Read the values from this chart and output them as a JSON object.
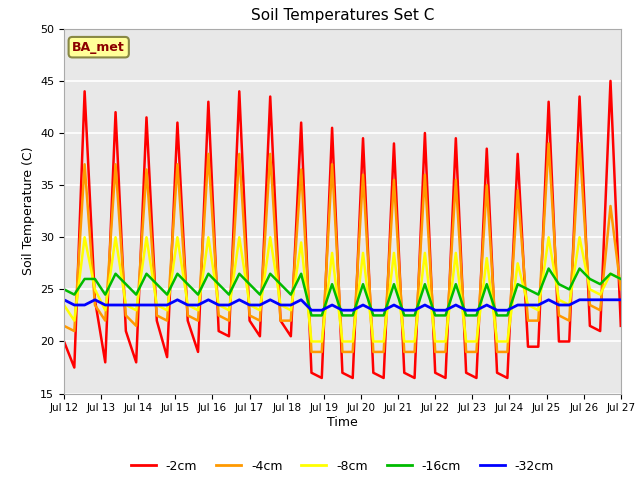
{
  "title": "Soil Temperatures Set C",
  "xlabel": "Time",
  "ylabel": "Soil Temperature (C)",
  "ylim": [
    15,
    50
  ],
  "yticks": [
    15,
    20,
    25,
    30,
    35,
    40,
    45,
    50
  ],
  "annotation": "BA_met",
  "bg_color": "#e8e8e8",
  "legend_labels": [
    "-2cm",
    "-4cm",
    "-8cm",
    "-16cm",
    "-32cm"
  ],
  "legend_colors": [
    "#ff0000",
    "#ff9900",
    "#ffff00",
    "#00bb00",
    "#0000ff"
  ],
  "x_tick_labels": [
    "Jul 12",
    "Jul 13",
    "Jul 14",
    "Jul 15",
    "Jul 16",
    "Jul 17",
    "Jul 18",
    "Jul 19",
    "Jul 20",
    "Jul 21",
    "Jul 22",
    "Jul 23",
    "Jul 24",
    "Jul 25",
    "Jul 26",
    "Jul 27"
  ],
  "series": {
    "neg2cm": [
      20.0,
      17.5,
      44.0,
      24.0,
      18.0,
      42.0,
      21.0,
      18.0,
      41.5,
      22.0,
      18.5,
      41.0,
      22.0,
      19.0,
      43.0,
      21.0,
      20.5,
      44.0,
      22.0,
      20.5,
      43.5,
      22.0,
      20.5,
      41.0,
      17.0,
      16.5,
      40.5,
      17.0,
      16.5,
      39.5,
      17.0,
      16.5,
      39.0,
      17.0,
      16.5,
      40.0,
      17.0,
      16.5,
      39.5,
      17.0,
      16.5,
      38.5,
      17.0,
      16.5,
      38.0,
      19.5,
      19.5,
      43.0,
      20.0,
      20.0,
      43.5,
      21.5,
      21.0,
      45.0,
      21.5
    ],
    "neg4cm": [
      21.5,
      21.0,
      37.0,
      23.5,
      22.0,
      37.0,
      22.5,
      21.5,
      36.5,
      22.5,
      22.0,
      37.0,
      22.5,
      22.0,
      38.0,
      22.5,
      22.0,
      38.0,
      22.5,
      22.0,
      38.0,
      22.0,
      22.0,
      36.5,
      19.0,
      19.0,
      37.0,
      19.0,
      19.0,
      36.0,
      19.0,
      19.0,
      35.5,
      19.0,
      19.0,
      36.0,
      19.0,
      19.0,
      35.5,
      19.0,
      19.0,
      35.0,
      19.0,
      19.0,
      34.5,
      22.0,
      22.0,
      39.0,
      22.5,
      22.0,
      39.0,
      23.5,
      23.0,
      33.0,
      25.0
    ],
    "neg8cm": [
      23.5,
      22.0,
      30.0,
      25.0,
      23.0,
      30.0,
      23.5,
      23.0,
      30.0,
      23.5,
      23.0,
      30.0,
      23.5,
      23.0,
      30.0,
      23.5,
      23.0,
      30.0,
      23.5,
      23.0,
      30.0,
      23.5,
      23.0,
      29.5,
      20.0,
      20.0,
      28.5,
      20.0,
      20.0,
      28.5,
      20.0,
      20.0,
      28.5,
      20.0,
      20.0,
      28.5,
      20.0,
      20.0,
      28.5,
      20.0,
      20.0,
      28.0,
      20.0,
      20.0,
      27.5,
      23.5,
      23.0,
      30.0,
      24.0,
      23.5,
      30.0,
      25.0,
      24.5,
      26.5,
      26.0
    ],
    "neg16cm": [
      25.0,
      24.5,
      26.0,
      26.0,
      24.5,
      26.5,
      25.5,
      24.5,
      26.5,
      25.5,
      24.5,
      26.5,
      25.5,
      24.5,
      26.5,
      25.5,
      24.5,
      26.5,
      25.5,
      24.5,
      26.5,
      25.5,
      24.5,
      26.5,
      22.5,
      22.5,
      25.5,
      22.5,
      22.5,
      25.5,
      22.5,
      22.5,
      25.5,
      22.5,
      22.5,
      25.5,
      22.5,
      22.5,
      25.5,
      22.5,
      22.5,
      25.5,
      22.5,
      22.5,
      25.5,
      25.0,
      24.5,
      27.0,
      25.5,
      25.0,
      27.0,
      26.0,
      25.5,
      26.5,
      26.0
    ],
    "neg32cm": [
      24.0,
      23.5,
      23.5,
      24.0,
      23.5,
      23.5,
      23.5,
      23.5,
      23.5,
      23.5,
      23.5,
      24.0,
      23.5,
      23.5,
      24.0,
      23.5,
      23.5,
      24.0,
      23.5,
      23.5,
      24.0,
      23.5,
      23.5,
      24.0,
      23.0,
      23.0,
      23.5,
      23.0,
      23.0,
      23.5,
      23.0,
      23.0,
      23.5,
      23.0,
      23.0,
      23.5,
      23.0,
      23.0,
      23.5,
      23.0,
      23.0,
      23.5,
      23.0,
      23.0,
      23.5,
      23.5,
      23.5,
      24.0,
      23.5,
      23.5,
      24.0,
      24.0,
      24.0,
      24.0,
      24.0
    ]
  }
}
